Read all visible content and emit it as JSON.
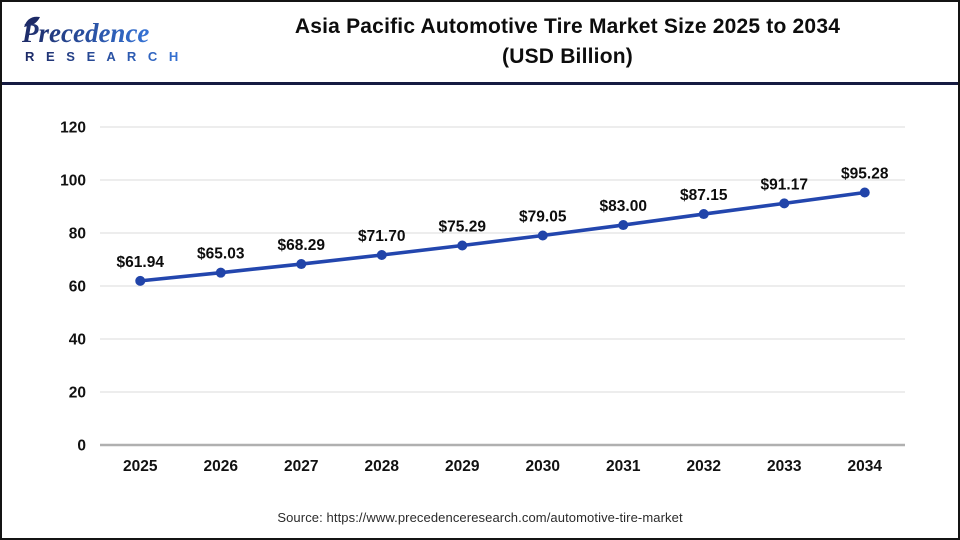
{
  "logo": {
    "brand": "Precedence",
    "sub_brand": "R E S E A R C H"
  },
  "header": {
    "title_line1": "Asia Pacific Automotive Tire Market Size 2025 to 2034",
    "title_line2": "(USD Billion)"
  },
  "source": "Source: https://www.precedenceresearch.com/automotive-tire-market",
  "colors": {
    "line": "#2346ae",
    "point": "#2144a9",
    "grid": "#e7e7e7",
    "zero_axis": "#b0b0b0",
    "tick_label": "#111111",
    "data_label": "#0d0d0d",
    "header_rule": "#161b41",
    "logo_dark": "#1d2a66",
    "logo_light": "#3573d6"
  },
  "chart_data": {
    "type": "line",
    "title": "Asia Pacific Automotive Tire Market Size 2025 to 2034 (USD Billion)",
    "categories": [
      "2025",
      "2026",
      "2027",
      "2028",
      "2029",
      "2030",
      "2031",
      "2032",
      "2033",
      "2034"
    ],
    "series": [
      {
        "name": "Asia Pacific Automotive Tire Market Size (USD Billion)",
        "values": [
          61.94,
          65.03,
          68.29,
          71.7,
          75.29,
          79.05,
          83.0,
          87.15,
          91.17,
          95.28
        ]
      }
    ],
    "value_labels": [
      "$61.94",
      "$65.03",
      "$68.29",
      "$71.70",
      "$75.29",
      "$79.05",
      "$83.00",
      "$87.15",
      "$91.17",
      "$95.28"
    ],
    "yticks": [
      0,
      20,
      40,
      60,
      80,
      100,
      120
    ],
    "ytick_labels": [
      "0",
      "20",
      "40",
      "60",
      "80",
      "100",
      "120"
    ],
    "ylim": [
      0,
      120
    ],
    "xlabel": "",
    "ylabel": "",
    "grid": true,
    "legend": false
  }
}
